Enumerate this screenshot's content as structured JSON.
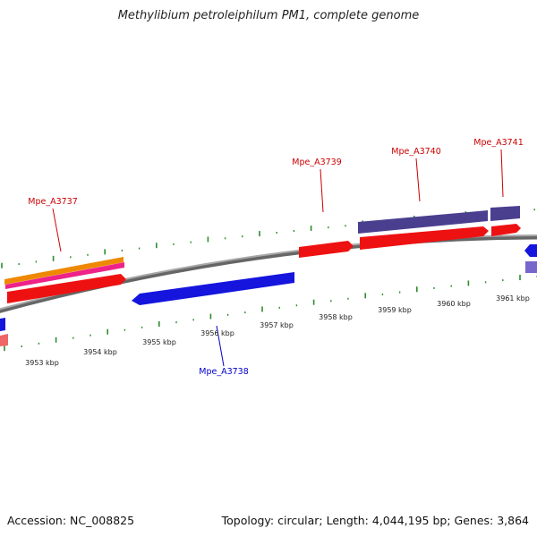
{
  "title": "Methylibium petroleiphilum PM1, complete genome",
  "footer": {
    "accession": "Accession: NC_008825",
    "stats": "Topology: circular; Length: 4,044,195 bp; Genes: 3,864"
  },
  "colors": {
    "backbone": "#888888",
    "tick": "#2e8b2e",
    "forward_label": "#cc0000",
    "reverse_label": "#0000cc",
    "red_gene": "#ee1111",
    "blue_gene": "#1515dd",
    "purple_gene": "#4a3f8f",
    "orange_gene": "#ee8800",
    "pink_gene": "#ee2288",
    "light_red": "#ee6666",
    "light_purple": "#7766cc"
  },
  "axis": {
    "tick_labels": [
      "3953 kbp",
      "3954 kbp",
      "3955 kbp",
      "3956 kbp",
      "3957 kbp",
      "3958 kbp",
      "3959 kbp",
      "3960 kbp",
      "3961 kbp"
    ]
  },
  "gene_labels": [
    {
      "name": "Mpe_A3737",
      "strand": "forward"
    },
    {
      "name": "Mpe_A3738",
      "strand": "reverse"
    },
    {
      "name": "Mpe_A3739",
      "strand": "forward"
    },
    {
      "name": "Mpe_A3740",
      "strand": "forward"
    },
    {
      "name": "Mpe_A3741",
      "strand": "forward"
    }
  ]
}
